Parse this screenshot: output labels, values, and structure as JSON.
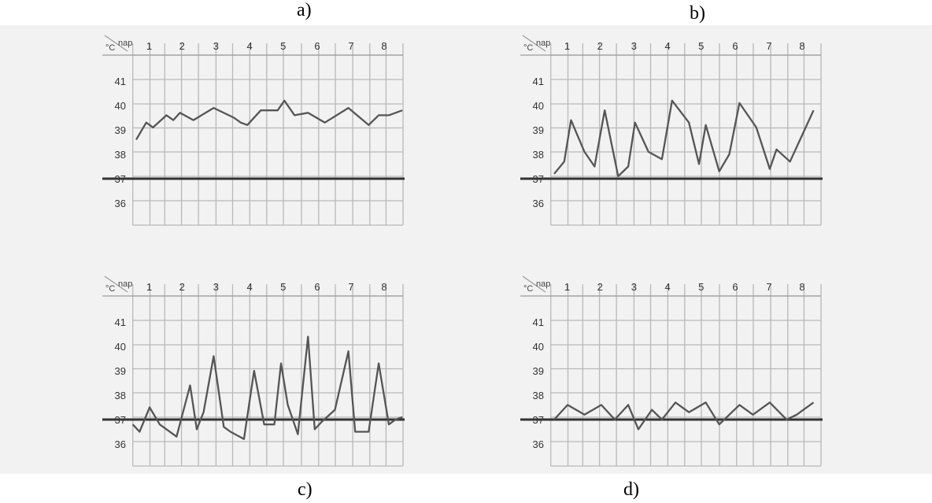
{
  "panel_labels": [
    "a)",
    "b)",
    "c)",
    "d)"
  ],
  "chart_data": [
    {
      "type": "line",
      "panel": "a)",
      "corner_label_top": "nap",
      "corner_label_left": "°C",
      "x_ticks": [
        "1",
        "2",
        "3",
        "4",
        "5",
        "6",
        "7",
        "8"
      ],
      "y_ticks": [
        "41",
        "40",
        "39",
        "38",
        "37",
        "36"
      ],
      "ylim": [
        35,
        42
      ],
      "xlim": [
        0.5,
        8.7
      ],
      "reference_line": 37,
      "grid": true,
      "x": [
        0.6,
        0.9,
        1.1,
        1.5,
        1.7,
        1.9,
        2.3,
        2.9,
        3.5,
        3.7,
        3.9,
        4.3,
        4.8,
        5.0,
        5.3,
        5.7,
        6.2,
        6.9,
        7.5,
        7.8,
        8.1,
        8.5
      ],
      "y": [
        38.6,
        39.3,
        39.1,
        39.6,
        39.4,
        39.7,
        39.4,
        39.9,
        39.5,
        39.3,
        39.2,
        39.8,
        39.8,
        40.2,
        39.6,
        39.7,
        39.3,
        39.9,
        39.2,
        39.6,
        39.6,
        39.8
      ]
    },
    {
      "type": "line",
      "panel": "b)",
      "corner_label_top": "nap",
      "corner_label_left": "°C",
      "x_ticks": [
        "1",
        "2",
        "3",
        "4",
        "5",
        "6",
        "7",
        "8"
      ],
      "y_ticks": [
        "41",
        "40",
        "39",
        "38",
        "37",
        "36"
      ],
      "ylim": [
        35,
        42
      ],
      "xlim": [
        0.5,
        8.7
      ],
      "reference_line": 37,
      "grid": true,
      "x": [
        0.6,
        0.9,
        1.1,
        1.5,
        1.8,
        2.1,
        2.5,
        2.8,
        3.0,
        3.4,
        3.8,
        4.1,
        4.6,
        4.9,
        5.1,
        5.5,
        5.8,
        6.1,
        6.6,
        7.0,
        7.2,
        7.6,
        8.0,
        8.3
      ],
      "y": [
        37.2,
        37.7,
        39.4,
        38.1,
        37.5,
        39.8,
        37.1,
        37.5,
        39.3,
        38.1,
        37.8,
        40.2,
        39.3,
        37.6,
        39.2,
        37.3,
        38.0,
        40.1,
        39.1,
        37.4,
        38.2,
        37.7,
        38.9,
        39.8
      ]
    },
    {
      "type": "line",
      "panel": "c)",
      "corner_label_top": "nap",
      "corner_label_left": "°C",
      "x_ticks": [
        "1",
        "2",
        "3",
        "4",
        "5",
        "6",
        "7",
        "8"
      ],
      "y_ticks": [
        "41",
        "40",
        "39",
        "38",
        "37",
        "36"
      ],
      "ylim": [
        35,
        42
      ],
      "xlim": [
        0.5,
        8.7
      ],
      "reference_line": 37,
      "grid": true,
      "x": [
        0.5,
        0.7,
        1.0,
        1.3,
        1.8,
        2.2,
        2.4,
        2.6,
        2.9,
        3.2,
        3.4,
        3.8,
        4.1,
        4.4,
        4.7,
        4.9,
        5.1,
        5.4,
        5.7,
        5.9,
        6.1,
        6.5,
        6.9,
        7.1,
        7.5,
        7.8,
        8.1,
        8.3,
        8.5
      ],
      "y": [
        36.8,
        36.5,
        37.5,
        36.8,
        36.3,
        38.4,
        36.6,
        37.3,
        39.6,
        36.7,
        36.5,
        36.2,
        39.0,
        36.8,
        36.8,
        39.3,
        37.6,
        36.4,
        40.4,
        36.6,
        36.9,
        37.4,
        39.8,
        36.5,
        36.5,
        39.3,
        36.8,
        37.0,
        37.1
      ]
    },
    {
      "type": "line",
      "panel": "d)",
      "corner_label_top": "nap",
      "corner_label_left": "°C",
      "x_ticks": [
        "1",
        "2",
        "3",
        "4",
        "5",
        "6",
        "7",
        "8"
      ],
      "y_ticks": [
        "41",
        "40",
        "39",
        "38",
        "37",
        "36"
      ],
      "ylim": [
        35,
        42
      ],
      "xlim": [
        0.5,
        8.7
      ],
      "reference_line": 37,
      "grid": true,
      "x": [
        0.6,
        1.0,
        1.5,
        2.0,
        2.4,
        2.8,
        3.1,
        3.5,
        3.8,
        4.2,
        4.6,
        5.1,
        5.5,
        5.8,
        6.1,
        6.5,
        7.0,
        7.5,
        7.8,
        8.3
      ],
      "y": [
        37.0,
        37.6,
        37.2,
        37.6,
        37.0,
        37.6,
        36.6,
        37.4,
        37.0,
        37.7,
        37.3,
        37.7,
        36.8,
        37.2,
        37.6,
        37.2,
        37.7,
        37.0,
        37.2,
        37.7
      ]
    }
  ]
}
